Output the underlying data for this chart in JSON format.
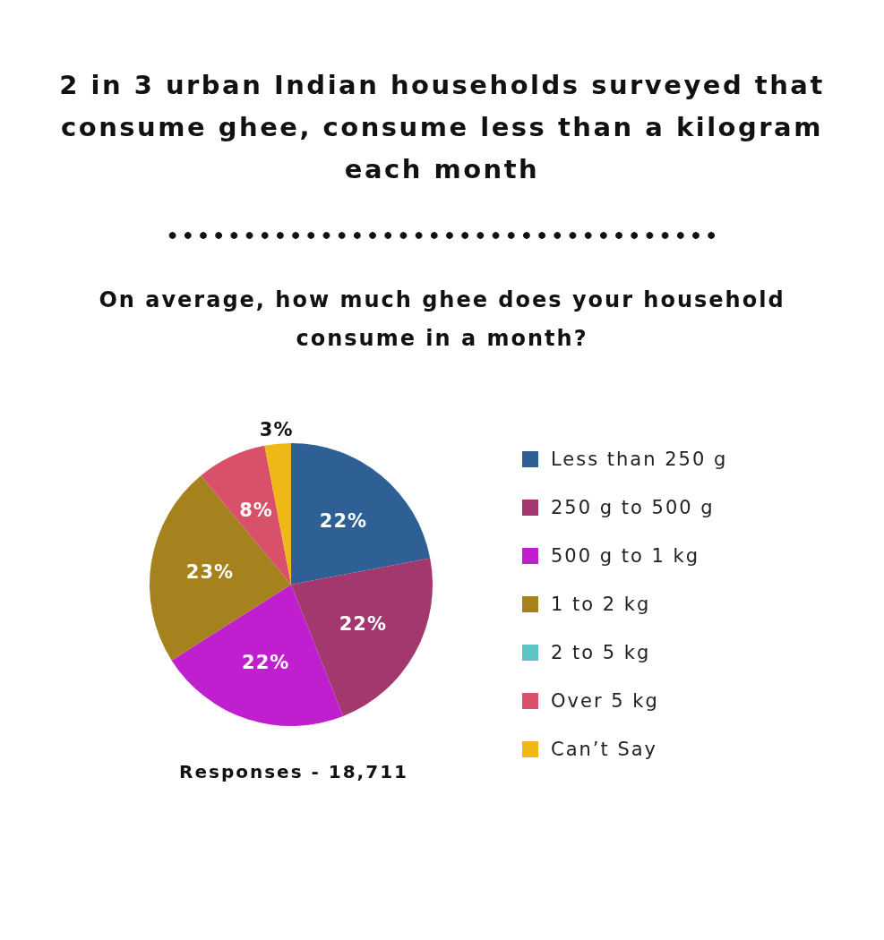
{
  "chart_data": {
    "type": "pie",
    "title": "2 in 3 urban Indian households surveyed that consume ghee, consume less than a kilogram each month",
    "subtitle": "On average, how much ghee does your household consume in a month?",
    "categories": [
      "Less than 250 g",
      "250 g to 500 g",
      "500 g to 1 kg",
      "1 to 2 kg",
      "2 to 5 kg",
      "Over 5 kg",
      "Can’t Say"
    ],
    "values": [
      22,
      22,
      22,
      23,
      0,
      8,
      3
    ],
    "colors": [
      "#2e6096",
      "#a3386f",
      "#c01fd0",
      "#a6821f",
      "#5bc5c5",
      "#d9506b",
      "#f0b816"
    ],
    "value_labels": [
      "22%",
      "22%",
      "22%",
      "23%",
      null,
      "8%",
      "3%"
    ],
    "legend": "right",
    "annotations": [
      "Responses - 18,711"
    ]
  }
}
